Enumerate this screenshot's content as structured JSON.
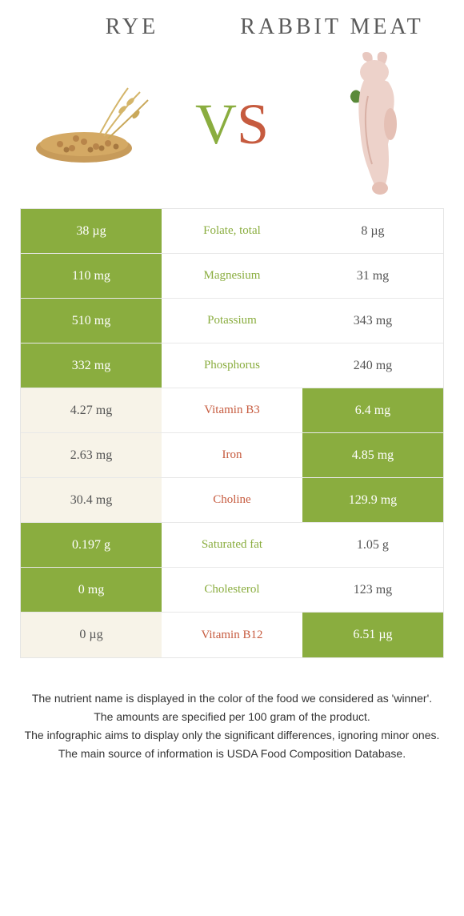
{
  "header": {
    "left_title": "RYE",
    "right_title": "RABBIT MEAT",
    "vs_v": "V",
    "vs_s": "S"
  },
  "colors": {
    "green": "#8aad3f",
    "orange": "#c65b3f",
    "lose_left_bg": "#f7f3e8",
    "lose_right_bg": "#ffffff",
    "border": "#e5e5e5"
  },
  "rows": [
    {
      "left": "38 µg",
      "label": "Folate, total",
      "right": "8 µg",
      "winner": "left"
    },
    {
      "left": "110 mg",
      "label": "Magnesium",
      "right": "31 mg",
      "winner": "left"
    },
    {
      "left": "510 mg",
      "label": "Potassium",
      "right": "343 mg",
      "winner": "left"
    },
    {
      "left": "332 mg",
      "label": "Phosphorus",
      "right": "240 mg",
      "winner": "left"
    },
    {
      "left": "4.27 mg",
      "label": "Vitamin B3",
      "right": "6.4 mg",
      "winner": "right"
    },
    {
      "left": "2.63 mg",
      "label": "Iron",
      "right": "4.85 mg",
      "winner": "right"
    },
    {
      "left": "30.4 mg",
      "label": "Choline",
      "right": "129.9 mg",
      "winner": "right"
    },
    {
      "left": "0.197 g",
      "label": "Saturated fat",
      "right": "1.05 g",
      "winner": "left"
    },
    {
      "left": "0 mg",
      "label": "Cholesterol",
      "right": "123 mg",
      "winner": "left"
    },
    {
      "left": "0 µg",
      "label": "Vitamin B12",
      "right": "6.51 µg",
      "winner": "right"
    }
  ],
  "footer": {
    "line1": "The nutrient name is displayed in the color of the food we considered as 'winner'.",
    "line2": "The amounts are specified per 100 gram of the product.",
    "line3": "The infographic aims to display only the significant differences, ignoring minor ones.",
    "line4": "The main source of information is USDA Food Composition Database."
  }
}
